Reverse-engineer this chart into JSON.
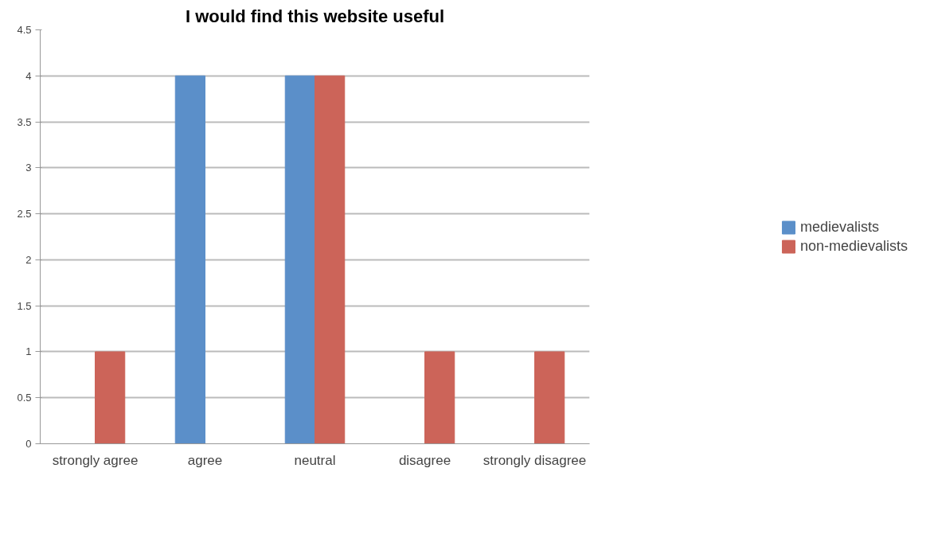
{
  "chart_data": {
    "type": "bar",
    "title": "I would find this website useful",
    "categories": [
      "strongly agree",
      "agree",
      "neutral",
      "disagree",
      "strongly disagree"
    ],
    "series": [
      {
        "name": "medievalists",
        "color": "#5b8fc9",
        "values": [
          0,
          4,
          4,
          0,
          0
        ]
      },
      {
        "name": "non-medievalists",
        "color": "#cc6459",
        "values": [
          1,
          0,
          4,
          1,
          1
        ]
      }
    ],
    "ylim": [
      0,
      4.5
    ],
    "yticks": [
      0,
      0.5,
      1,
      1.5,
      2,
      2.5,
      3,
      3.5,
      4,
      4.5
    ],
    "grid": "y",
    "legend": "right"
  }
}
